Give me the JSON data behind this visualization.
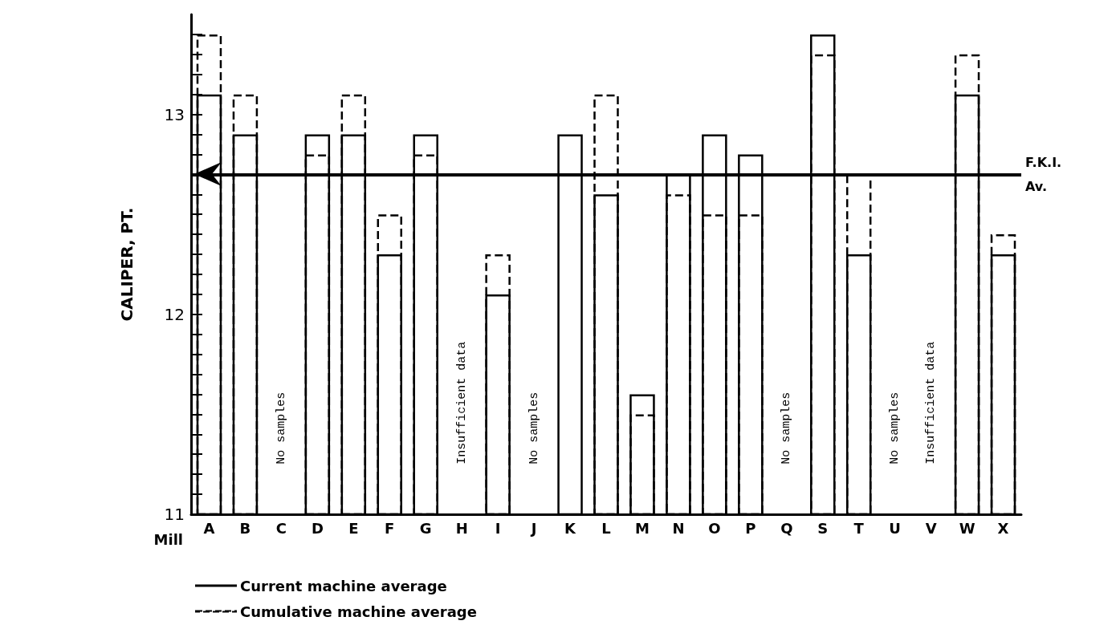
{
  "chart_data": {
    "type": "bar",
    "xlabel": "Mill",
    "ylabel": "CALIPER, PT.",
    "categories": [
      "A",
      "B",
      "C",
      "D",
      "E",
      "F",
      "G",
      "H",
      "I",
      "J",
      "K",
      "L",
      "M",
      "N",
      "O",
      "P",
      "Q",
      "S",
      "T",
      "U",
      "V",
      "W",
      "X"
    ],
    "series": [
      {
        "name": "Current machine average",
        "color": "#000000",
        "line_style": "solid",
        "values": [
          13.1,
          12.9,
          null,
          12.9,
          12.9,
          12.3,
          12.9,
          null,
          12.1,
          null,
          12.9,
          12.6,
          11.6,
          12.7,
          12.9,
          12.8,
          null,
          13.4,
          12.3,
          null,
          null,
          13.1,
          12.3
        ]
      },
      {
        "name": "Cumulative machine average",
        "color": "#000000",
        "line_style": "dashed",
        "values": [
          13.4,
          13.1,
          null,
          12.8,
          13.1,
          12.5,
          12.8,
          null,
          12.3,
          null,
          null,
          13.1,
          11.5,
          12.6,
          12.5,
          12.5,
          null,
          13.3,
          12.7,
          null,
          null,
          13.3,
          12.4
        ]
      }
    ],
    "ylim": [
      11,
      13.5
    ],
    "yticks": [
      11,
      {
        "value": 11.1,
        "label": null
      },
      {
        "value": 11.2,
        "label": null
      },
      {
        "value": 11.3,
        "label": null
      },
      {
        "value": 11.4,
        "label": null
      },
      {
        "value": 11.5,
        "label": null
      },
      {
        "value": 11.6,
        "label": null
      },
      {
        "value": 11.7,
        "label": null
      },
      {
        "value": 11.8,
        "label": null
      },
      {
        "value": 11.9,
        "label": null
      },
      12,
      {
        "value": 12.1,
        "label": null
      },
      {
        "value": 12.2,
        "label": null
      },
      {
        "value": 12.3,
        "label": null
      },
      {
        "value": 12.4,
        "label": null
      },
      {
        "value": 12.5,
        "label": null
      },
      {
        "value": 12.6,
        "label": null
      },
      {
        "value": 12.7,
        "label": null
      },
      {
        "value": 12.8,
        "label": null
      },
      {
        "value": 12.9,
        "label": null
      },
      13,
      {
        "value": 13.1,
        "label": null
      },
      {
        "value": 13.2,
        "label": null
      },
      {
        "value": 13.3,
        "label": null
      },
      {
        "value": 13.4,
        "label": null
      }
    ],
    "ref_lines": [
      {
        "axis": "y",
        "value": 12.7,
        "label": "F.K.I.\nAv.",
        "color": "#000000",
        "line_style": "solid"
      }
    ],
    "annotations": [
      "No samples",
      "Insufficient data",
      "No samples",
      "No samples",
      "No samples",
      "Insufficient data"
    ],
    "grid": false,
    "legend": "bottom left"
  }
}
